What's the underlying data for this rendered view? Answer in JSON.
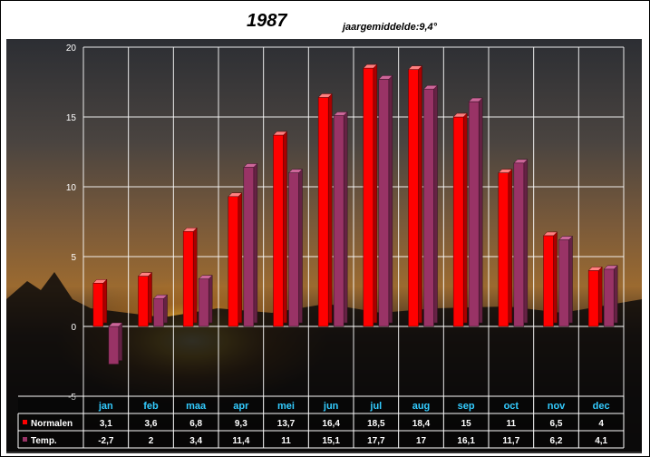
{
  "chart_data": {
    "type": "bar",
    "title": "1987",
    "subtitle": "jaargemiddelde:9,4°",
    "ylim": [
      -5,
      20
    ],
    "yticks": [
      -5,
      0,
      5,
      10,
      15,
      20
    ],
    "grid": true,
    "legend": "bottom-left table",
    "categories": [
      "jan",
      "feb",
      "maa",
      "apr",
      "mei",
      "jun",
      "jul",
      "aug",
      "sep",
      "oct",
      "nov",
      "dec"
    ],
    "series": [
      {
        "name": "Normalen",
        "color": "#ff0000",
        "values": [
          3.1,
          3.6,
          6.8,
          9.3,
          13.7,
          16.4,
          18.5,
          18.4,
          15,
          11,
          6.5,
          4
        ],
        "labels": [
          "3,1",
          "3,6",
          "6,8",
          "9,3",
          "13,7",
          "16,4",
          "18,5",
          "18,4",
          "15",
          "11",
          "6,5",
          "4"
        ]
      },
      {
        "name": "Temp.",
        "color": "#993366",
        "values": [
          -2.7,
          2,
          3.4,
          11.4,
          11,
          15.1,
          17.7,
          17,
          16.1,
          11.7,
          6.2,
          4.1
        ],
        "labels": [
          "-2,7",
          "2",
          "3,4",
          "11,4",
          "11",
          "15,1",
          "17,7",
          "17",
          "16,1",
          "11,7",
          "6,2",
          "4,1"
        ]
      }
    ]
  },
  "colors": {
    "background": "#1a1512",
    "grid": "#ffffff",
    "category_text": "#33ccff"
  }
}
